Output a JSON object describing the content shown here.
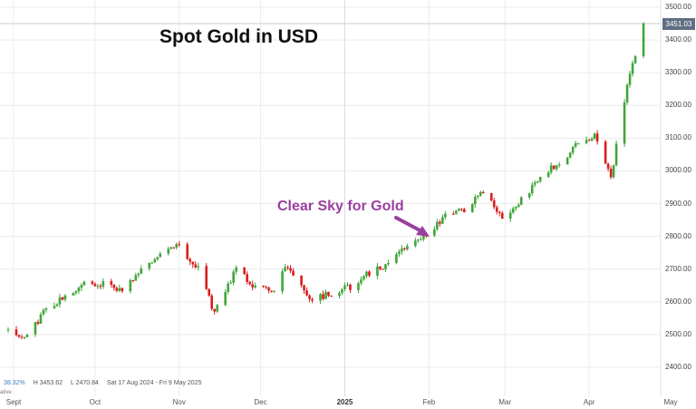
{
  "chart_data": {
    "type": "candlestick",
    "title": "Spot Gold in USD",
    "annotation": "Clear Sky for Gold",
    "last_price": "3451.03",
    "y_ticks": [
      "3500.00",
      "3400.00",
      "3300.00",
      "3200.00",
      "3100.00",
      "3000.00",
      "2900.00",
      "2800.00",
      "2700.00",
      "2600.00",
      "2500.00",
      "2400.00"
    ],
    "ylim": [
      2348,
      3505
    ],
    "x_ticks": [
      {
        "label": "Sept",
        "date": "2024-09-01",
        "bold": false
      },
      {
        "label": "Oct",
        "date": "2024-10-01",
        "bold": false
      },
      {
        "label": "Nov",
        "date": "2024-11-01",
        "bold": false
      },
      {
        "label": "Dec",
        "date": "2024-12-01",
        "bold": false
      },
      {
        "label": "2025",
        "date": "2025-01-01",
        "bold": true
      },
      {
        "label": "Feb",
        "date": "2025-02-01",
        "bold": false
      },
      {
        "label": "Mar",
        "date": "2025-03-01",
        "bold": false
      },
      {
        "label": "Apr",
        "date": "2025-04-01",
        "bold": false
      },
      {
        "label": "May",
        "date": "2025-05-01",
        "bold": false
      }
    ],
    "info_bar": {
      "change_pct": "38.32%",
      "high": "H 3453.62",
      "low": "L 2470.84",
      "range": "Sat 17 Aug 2024 - Fri 9 May 2025"
    },
    "mode_label": "ative",
    "colors": {
      "up": "#3fa63a",
      "down": "#d81e1e",
      "annotation": "#9a3fa0",
      "grid": "#ececec",
      "price_line": "#c8c8c8"
    },
    "grid": true,
    "series": [
      {
        "x": "2024-08-30",
        "close": 2513
      },
      {
        "x": "2024-09-06",
        "close": 2497
      },
      {
        "x": "2024-09-13",
        "close": 2578
      },
      {
        "x": "2024-09-20",
        "close": 2622
      },
      {
        "x": "2024-09-27",
        "close": 2658
      },
      {
        "x": "2024-10-04",
        "close": 2654
      },
      {
        "x": "2024-10-11",
        "close": 2633
      },
      {
        "x": "2024-10-18",
        "close": 2702
      },
      {
        "x": "2024-10-25",
        "close": 2746
      },
      {
        "x": "2024-10-31",
        "close": 2776
      },
      {
        "x": "2024-11-08",
        "close": 2700
      },
      {
        "x": "2024-11-14",
        "close": 2566
      },
      {
        "x": "2024-11-22",
        "close": 2702
      },
      {
        "x": "2024-11-29",
        "close": 2640
      },
      {
        "x": "2024-12-06",
        "close": 2638
      },
      {
        "x": "2024-12-11",
        "close": 2712
      },
      {
        "x": "2024-12-19",
        "close": 2612
      },
      {
        "x": "2024-12-27",
        "close": 2622
      },
      {
        "x": "2025-01-03",
        "close": 2647
      },
      {
        "x": "2025-01-10",
        "close": 2689
      },
      {
        "x": "2025-01-17",
        "close": 2718
      },
      {
        "x": "2025-01-24",
        "close": 2770
      },
      {
        "x": "2025-01-31",
        "close": 2810
      },
      {
        "x": "2025-02-07",
        "close": 2861
      },
      {
        "x": "2025-02-14",
        "close": 2882
      },
      {
        "x": "2025-02-21",
        "close": 2935
      },
      {
        "x": "2025-02-28",
        "close": 2860
      },
      {
        "x": "2025-03-07",
        "close": 2910
      },
      {
        "x": "2025-03-14",
        "close": 2984
      },
      {
        "x": "2025-03-21",
        "close": 3022
      },
      {
        "x": "2025-03-28",
        "close": 3085
      },
      {
        "x": "2025-04-03",
        "close": 3110
      },
      {
        "x": "2025-04-09",
        "close": 2980
      },
      {
        "x": "2025-04-14",
        "close": 3215
      },
      {
        "x": "2025-04-17",
        "close": 3327
      },
      {
        "x": "2025-04-21",
        "close": 3451
      }
    ]
  }
}
